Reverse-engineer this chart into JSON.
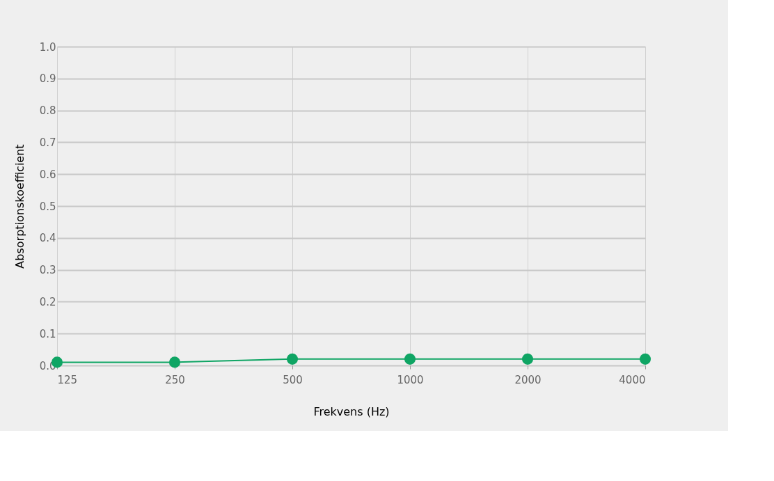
{
  "chart_data": {
    "type": "line",
    "xlabel": "Frekvens (Hz)",
    "ylabel": "Absorptionskoefficient",
    "categories": [
      "125",
      "250",
      "500",
      "1000",
      "2000",
      "4000"
    ],
    "series": [
      {
        "color": "#0fa564",
        "values": [
          0.01,
          0.01,
          0.02,
          0.02,
          0.02,
          0.02
        ]
      }
    ],
    "ylim": [
      0,
      1
    ],
    "yticks": [
      {
        "value": 0,
        "label": "0.0"
      },
      {
        "value": 0.1,
        "label": "0.1"
      },
      {
        "value": 0.2,
        "label": "0.2"
      },
      {
        "value": 0.3,
        "label": "0.3"
      },
      {
        "value": 0.4,
        "label": "0.4"
      },
      {
        "value": 0.5,
        "label": "0.5"
      },
      {
        "value": 0.6,
        "label": "0.6"
      },
      {
        "value": 0.7,
        "label": "0.7"
      },
      {
        "value": 0.8,
        "label": "0.8"
      },
      {
        "value": 0.9,
        "label": "0.9"
      },
      {
        "value": 1,
        "label": "1.0"
      }
    ],
    "grid": true,
    "marker": "circle",
    "line_style": "solid"
  }
}
